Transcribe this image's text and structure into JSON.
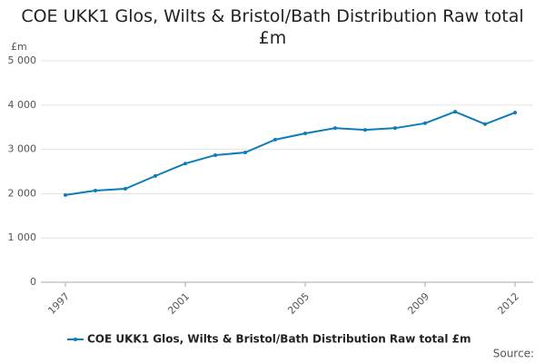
{
  "chart_data": {
    "type": "line",
    "title": "COE UKK1 Glos, Wilts & Bristol/Bath Distribution Raw total £m",
    "y_axis_label": "£m",
    "source": "Source:",
    "x": [
      1997,
      1998,
      1999,
      2000,
      2001,
      2002,
      2003,
      2004,
      2005,
      2006,
      2007,
      2008,
      2009,
      2010,
      2011,
      2012
    ],
    "series": [
      {
        "name": "COE UKK1 Glos, Wilts & Bristol/Bath Distribution Raw total £m",
        "color": "#0b7dbb",
        "values": [
          1970,
          2070,
          2110,
          2400,
          2680,
          2870,
          2930,
          3220,
          3360,
          3480,
          3440,
          3480,
          3590,
          3850,
          3570,
          3830
        ]
      }
    ],
    "xlim": [
      1997,
      2012
    ],
    "xticks": [
      1997,
      2001,
      2005,
      2009,
      2012
    ],
    "ylim": [
      0,
      5000
    ],
    "yticks": [
      0,
      {
        "value": 1000,
        "label": "1 000"
      },
      {
        "value": 2000,
        "label": "2 000"
      },
      {
        "value": 3000,
        "label": "3 000"
      },
      {
        "value": 4000,
        "label": "4 000"
      },
      {
        "value": 5000,
        "label": "5 000"
      }
    ],
    "grid": true
  }
}
